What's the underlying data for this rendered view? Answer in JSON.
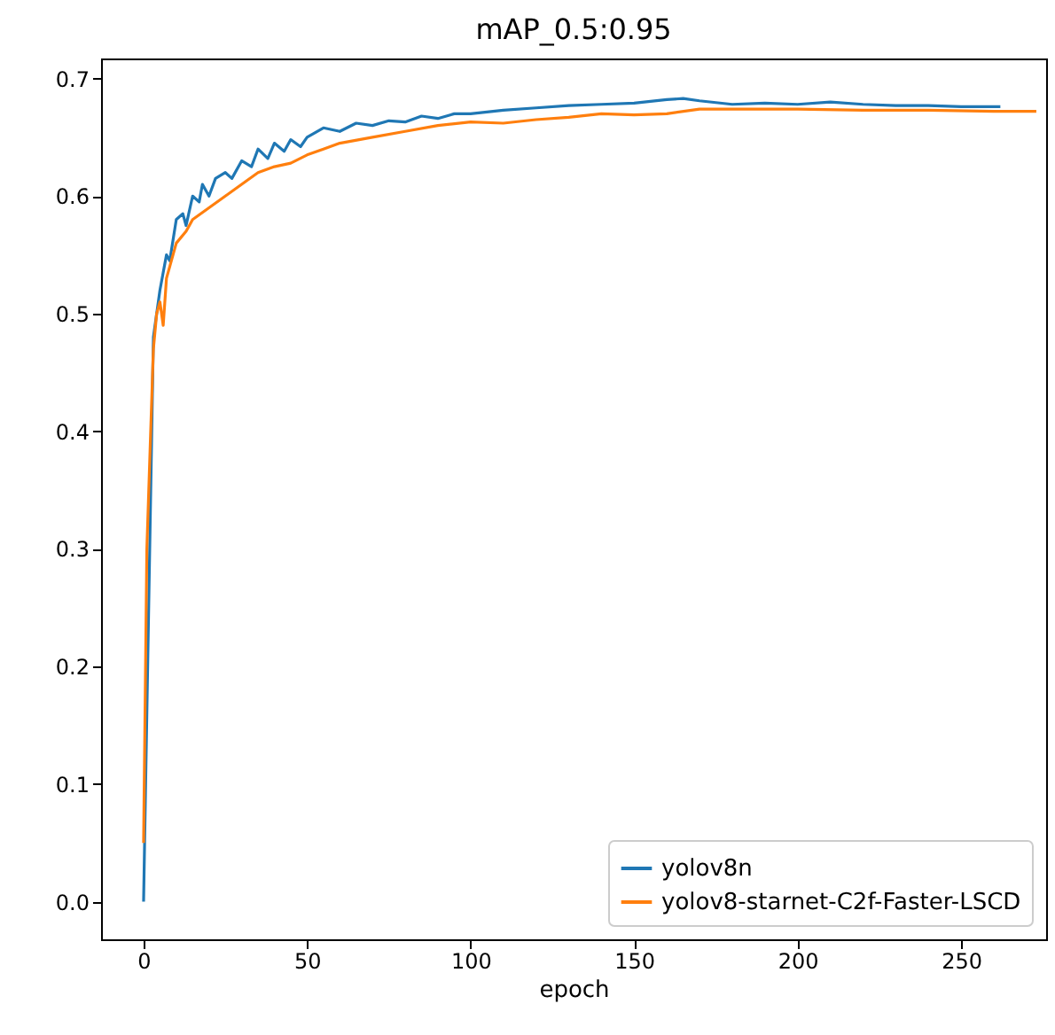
{
  "chart_data": {
    "type": "line",
    "title": "mAP_0.5:0.95",
    "xlabel": "epoch",
    "xlim": [
      -13,
      276
    ],
    "ylim": [
      -0.032,
      0.717
    ],
    "xticks": [
      0,
      50,
      100,
      150,
      200,
      250
    ],
    "yticks": [
      {
        "value": 0,
        "label": "0.0"
      },
      0.1,
      0.2,
      0.3,
      0.4,
      0.5,
      0.6,
      0.7
    ],
    "legend": "bottom right",
    "grid": false,
    "series": [
      {
        "name": "yolov8n",
        "color": "#1f77b4",
        "x": [
          0,
          3,
          5,
          7,
          8,
          10,
          12,
          13,
          15,
          17,
          18,
          20,
          22,
          25,
          27,
          30,
          33,
          35,
          38,
          40,
          43,
          45,
          48,
          50,
          55,
          60,
          65,
          70,
          75,
          80,
          85,
          90,
          95,
          100,
          110,
          120,
          130,
          140,
          150,
          160,
          165,
          170,
          180,
          190,
          200,
          210,
          220,
          230,
          240,
          250,
          262
        ],
        "values": [
          0.0,
          0.48,
          0.52,
          0.55,
          0.545,
          0.58,
          0.585,
          0.575,
          0.6,
          0.595,
          0.61,
          0.6,
          0.615,
          0.62,
          0.615,
          0.63,
          0.625,
          0.64,
          0.632,
          0.645,
          0.638,
          0.648,
          0.642,
          0.65,
          0.658,
          0.655,
          0.662,
          0.66,
          0.664,
          0.663,
          0.668,
          0.666,
          0.67,
          0.67,
          0.673,
          0.675,
          0.677,
          0.678,
          0.679,
          0.682,
          0.683,
          0.681,
          0.678,
          0.679,
          0.678,
          0.68,
          0.678,
          0.677,
          0.677,
          0.676,
          0.676
        ]
      },
      {
        "name": "yolov8-starnet-C2f-Faster-LSCD",
        "color": "#ff7f0e",
        "x": [
          0,
          1,
          3,
          4,
          5,
          6,
          7,
          10,
          13,
          15,
          20,
          25,
          30,
          35,
          40,
          45,
          50,
          55,
          60,
          70,
          80,
          90,
          100,
          110,
          120,
          130,
          140,
          150,
          160,
          170,
          180,
          190,
          200,
          220,
          240,
          260,
          273
        ],
        "values": [
          0.05,
          0.3,
          0.47,
          0.5,
          0.51,
          0.49,
          0.53,
          0.56,
          0.57,
          0.58,
          0.59,
          0.6,
          0.61,
          0.62,
          0.625,
          0.628,
          0.635,
          0.64,
          0.645,
          0.65,
          0.655,
          0.66,
          0.663,
          0.662,
          0.665,
          0.667,
          0.67,
          0.669,
          0.67,
          0.674,
          0.674,
          0.674,
          0.674,
          0.673,
          0.673,
          0.672,
          0.672
        ]
      }
    ]
  }
}
